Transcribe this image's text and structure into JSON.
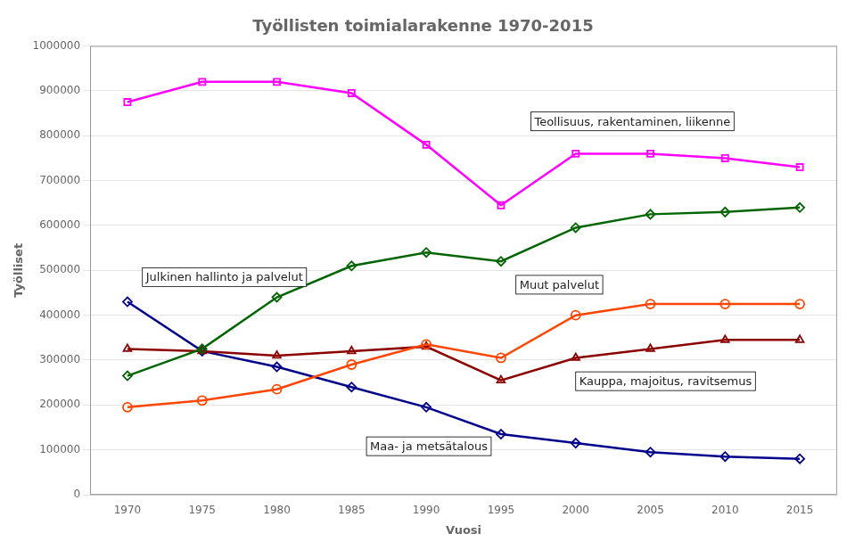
{
  "chart_data": {
    "type": "line",
    "title": "Työllisten toimialarakenne 1970-2015",
    "xlabel": "Vuosi",
    "ylabel": "Työlliset",
    "x": [
      1970,
      1975,
      1980,
      1985,
      1990,
      1995,
      2000,
      2005,
      2010,
      2015
    ],
    "series": [
      {
        "name": "Teollisuus, rakentaminen, liikenne",
        "color": "#FF00FF",
        "marker": "square",
        "values": [
          875000,
          920000,
          920000,
          895000,
          780000,
          645000,
          760000,
          760000,
          750000,
          730000
        ]
      },
      {
        "name": "Julkinen hallinto ja palvelut",
        "color": "#006400",
        "marker": "diamond",
        "values": [
          265000,
          325000,
          440000,
          510000,
          540000,
          520000,
          595000,
          625000,
          630000,
          640000
        ]
      },
      {
        "name": "Muut palvelut",
        "color": "#FF4500",
        "marker": "circle",
        "values": [
          195000,
          210000,
          235000,
          290000,
          335000,
          305000,
          400000,
          425000,
          425000,
          425000
        ]
      },
      {
        "name": "Kauppa, majoitus, ravitsemus",
        "color": "#8B0000",
        "marker": "triangle",
        "values": [
          325000,
          320000,
          310000,
          320000,
          330000,
          255000,
          305000,
          325000,
          345000,
          345000
        ]
      },
      {
        "name": "Maa- ja metsätalous",
        "color": "#00008B",
        "marker": "diamond",
        "values": [
          430000,
          320000,
          285000,
          240000,
          195000,
          135000,
          115000,
          95000,
          85000,
          80000
        ]
      }
    ],
    "annotations": [
      {
        "text": "Teollisuus, rakentaminen, liikenne",
        "x": 1997,
        "y": 832000
      },
      {
        "text": "Julkinen hallinto ja palvelut",
        "x": 1971,
        "y": 485000
      },
      {
        "text": "Muut palvelut",
        "x": 1996,
        "y": 468000
      },
      {
        "text": "Kauppa, majoitus, ravitsemus",
        "x": 2000,
        "y": 253000
      },
      {
        "text": "Maa- ja metsätalous",
        "x": 1986,
        "y": 108000
      }
    ],
    "xlim": [
      1967.5,
      2017.5
    ],
    "xticks": [
      1970,
      1975,
      1980,
      1985,
      1990,
      1995,
      2000,
      2005,
      2010,
      2015
    ],
    "ylim": [
      0,
      1000000
    ],
    "yticks": [
      0,
      100000,
      200000,
      300000,
      400000,
      500000,
      600000,
      700000,
      800000,
      900000,
      1000000
    ],
    "grid": "y"
  }
}
